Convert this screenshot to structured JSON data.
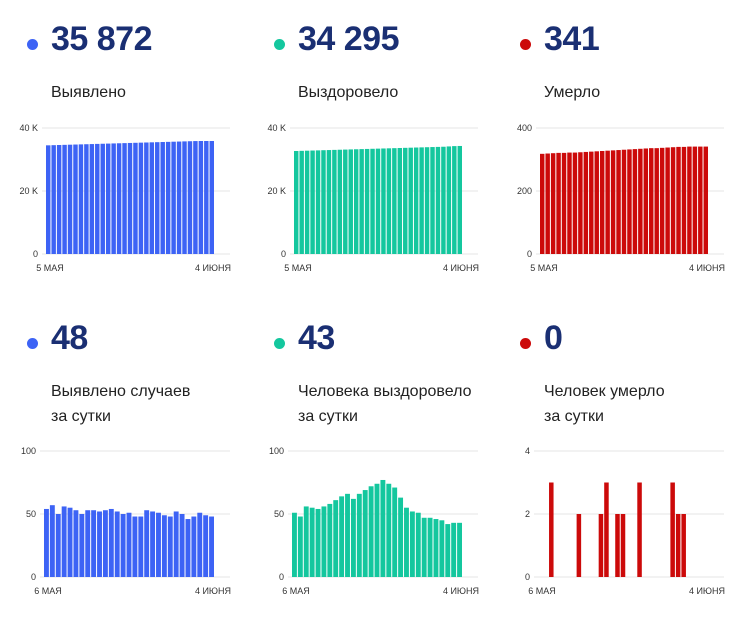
{
  "panels": [
    {
      "id": "p1",
      "value": "35 872",
      "label": [
        "Выявлено"
      ],
      "color": "#3d63f5"
    },
    {
      "id": "p2",
      "value": "34 295",
      "label": [
        "Выздоровело"
      ],
      "color": "#14c79e"
    },
    {
      "id": "p3",
      "value": "341",
      "label": [
        "Умерло"
      ],
      "color": "#cc0a0a"
    },
    {
      "id": "p4",
      "value": "48",
      "label": [
        "Выявлено случаев",
        "за сутки"
      ],
      "color": "#3d63f5"
    },
    {
      "id": "p5",
      "value": "43",
      "label": [
        "Человека выздоровело",
        "за сутки"
      ],
      "color": "#14c79e"
    },
    {
      "id": "p6",
      "value": "0",
      "label": [
        "Человек умерло",
        "за сутки"
      ],
      "color": "#cc0a0a"
    }
  ],
  "chart_data": [
    {
      "type": "bar",
      "title": "",
      "color": "#3d63f5",
      "ylim": [
        0,
        40000
      ],
      "yticks": [
        0,
        20000,
        40000
      ],
      "ytick_labels": [
        "0",
        "20 K",
        "40 K"
      ],
      "xtick_labels": [
        "5 МАЯ",
        "4 ИЮНЯ"
      ],
      "values": [
        34500,
        34550,
        34600,
        34650,
        34700,
        34750,
        34800,
        34850,
        34900,
        34950,
        35000,
        35050,
        35100,
        35150,
        35200,
        35250,
        35300,
        35350,
        35400,
        35450,
        35500,
        35550,
        35600,
        35650,
        35700,
        35750,
        35800,
        35850,
        35872,
        35872,
        35872
      ]
    },
    {
      "type": "bar",
      "title": "",
      "color": "#14c79e",
      "ylim": [
        0,
        40000
      ],
      "yticks": [
        0,
        20000,
        40000
      ],
      "ytick_labels": [
        "0",
        "20 K",
        "40 K"
      ],
      "xtick_labels": [
        "5 МАЯ",
        "4 ИЮНЯ"
      ],
      "values": [
        32700,
        32750,
        32800,
        32850,
        32900,
        32950,
        33000,
        33050,
        33100,
        33150,
        33200,
        33250,
        33300,
        33350,
        33400,
        33450,
        33500,
        33550,
        33600,
        33650,
        33700,
        33750,
        33800,
        33850,
        33900,
        33950,
        34000,
        34050,
        34150,
        34250,
        34295
      ]
    },
    {
      "type": "bar",
      "title": "",
      "color": "#cc0a0a",
      "ylim": [
        0,
        400
      ],
      "yticks": [
        0,
        200,
        400
      ],
      "ytick_labels": [
        "0",
        "200",
        "400"
      ],
      "xtick_labels": [
        "5 МАЯ",
        "4 ИЮНЯ"
      ],
      "values": [
        318,
        319,
        320,
        321,
        321,
        322,
        322,
        323,
        324,
        325,
        326,
        327,
        328,
        329,
        330,
        331,
        332,
        333,
        334,
        335,
        336,
        336,
        337,
        338,
        339,
        340,
        340,
        341,
        341,
        341,
        341
      ]
    },
    {
      "type": "bar",
      "title": "",
      "color": "#3d63f5",
      "ylim": [
        0,
        100
      ],
      "yticks": [
        0,
        50,
        100
      ],
      "ytick_labels": [
        "0",
        "50",
        "100"
      ],
      "xtick_labels": [
        "6 МАЯ",
        "4 ИЮНЯ"
      ],
      "values": [
        54,
        57,
        50,
        56,
        55,
        53,
        50,
        53,
        53,
        52,
        53,
        54,
        52,
        50,
        51,
        48,
        48,
        53,
        52,
        51,
        49,
        48,
        52,
        50,
        46,
        48,
        51,
        49,
        48
      ]
    },
    {
      "type": "bar",
      "title": "",
      "color": "#14c79e",
      "ylim": [
        0,
        100
      ],
      "yticks": [
        0,
        50,
        100
      ],
      "ytick_labels": [
        "0",
        "50",
        "100"
      ],
      "xtick_labels": [
        "6 МАЯ",
        "4 ИЮНЯ"
      ],
      "values": [
        51,
        48,
        56,
        55,
        54,
        56,
        58,
        61,
        64,
        66,
        62,
        66,
        69,
        72,
        74,
        77,
        74,
        71,
        63,
        55,
        52,
        51,
        47,
        47,
        46,
        45,
        42,
        43,
        43
      ]
    },
    {
      "type": "bar",
      "title": "",
      "color": "#cc0a0a",
      "ylim": [
        0,
        4
      ],
      "yticks": [
        0,
        2,
        4
      ],
      "ytick_labels": [
        "0",
        "2",
        "4"
      ],
      "xtick_labels": [
        "6 МАЯ",
        "4 ИЮНЯ"
      ],
      "values": [
        0,
        0,
        3,
        0,
        0,
        0,
        0,
        2,
        0,
        0,
        0,
        2,
        3,
        0,
        2,
        2,
        0,
        0,
        3,
        0,
        0,
        0,
        0,
        0,
        3,
        2,
        2,
        0,
        0,
        0,
        0
      ]
    }
  ]
}
